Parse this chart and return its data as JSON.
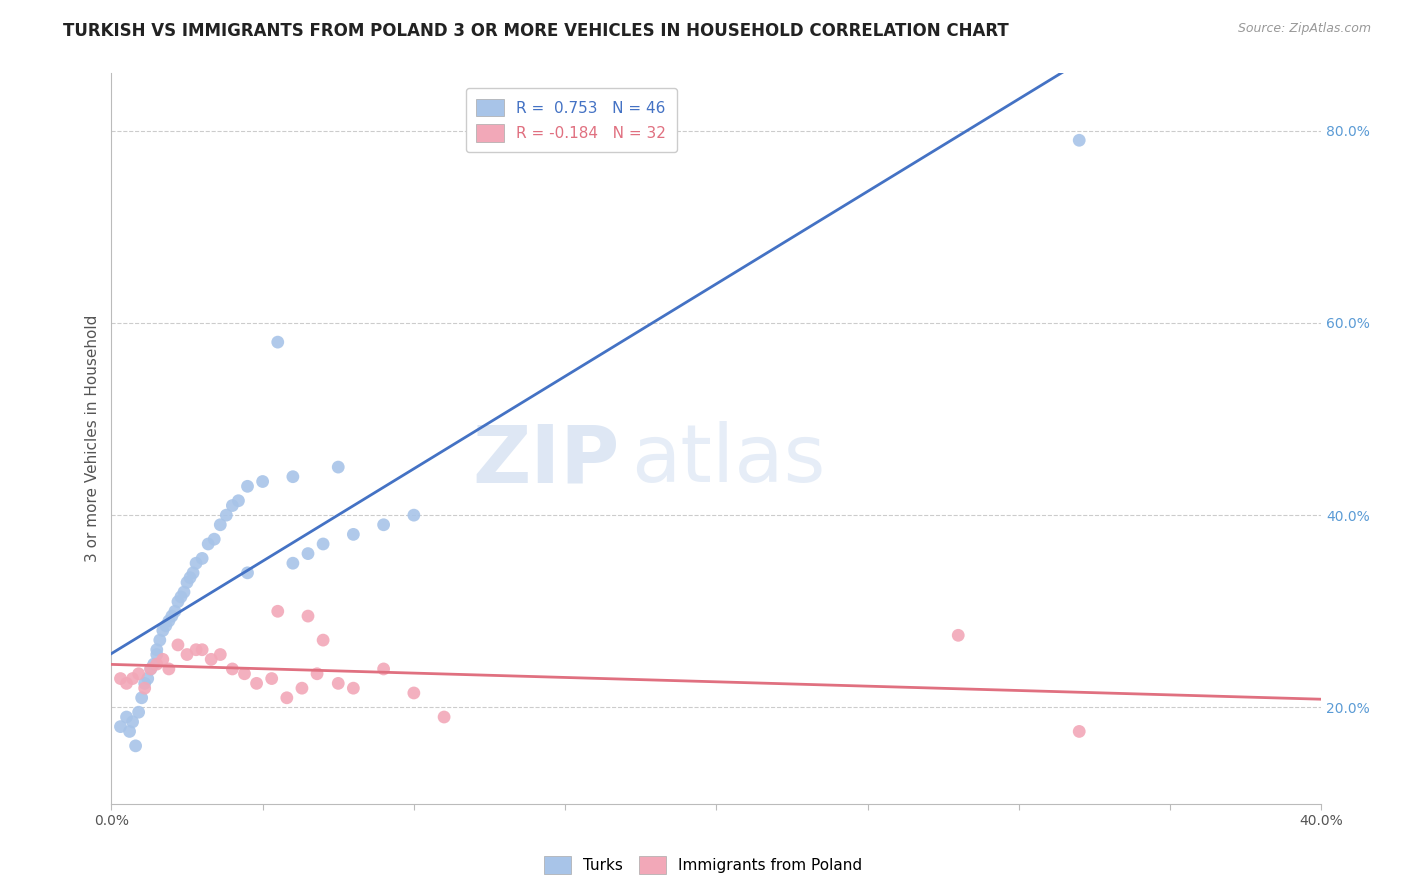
{
  "title": "TURKISH VS IMMIGRANTS FROM POLAND 3 OR MORE VEHICLES IN HOUSEHOLD CORRELATION CHART",
  "source": "Source: ZipAtlas.com",
  "ylabel": "3 or more Vehicles in Household",
  "xlim": [
    0.0,
    0.4
  ],
  "ylim": [
    0.1,
    0.86
  ],
  "x_ticks": [
    0.0,
    0.05,
    0.1,
    0.15,
    0.2,
    0.25,
    0.3,
    0.35,
    0.4
  ],
  "y_ticks_right": [
    0.2,
    0.4,
    0.6,
    0.8
  ],
  "y_tick_labels_right": [
    "20.0%",
    "40.0%",
    "60.0%",
    "80.0%"
  ],
  "legend_r1": "R =  0.753   N = 46",
  "legend_r2": "R = -0.184   N = 32",
  "turks_color": "#A8C4E8",
  "poland_color": "#F2A8B8",
  "trendline_turks_color": "#4472C4",
  "trendline_poland_color": "#E07080",
  "watermark_zip": "ZIP",
  "watermark_atlas": "atlas",
  "turks_scatter_x": [
    0.003,
    0.005,
    0.006,
    0.007,
    0.008,
    0.009,
    0.01,
    0.011,
    0.012,
    0.013,
    0.014,
    0.015,
    0.015,
    0.016,
    0.017,
    0.018,
    0.019,
    0.02,
    0.021,
    0.022,
    0.023,
    0.024,
    0.025,
    0.026,
    0.027,
    0.028,
    0.03,
    0.032,
    0.034,
    0.036,
    0.038,
    0.04,
    0.042,
    0.045,
    0.05,
    0.055,
    0.06,
    0.065,
    0.07,
    0.08,
    0.09,
    0.1,
    0.045,
    0.06,
    0.075,
    0.32
  ],
  "turks_scatter_y": [
    0.18,
    0.19,
    0.175,
    0.185,
    0.16,
    0.195,
    0.21,
    0.225,
    0.23,
    0.24,
    0.245,
    0.255,
    0.26,
    0.27,
    0.28,
    0.285,
    0.29,
    0.295,
    0.3,
    0.31,
    0.315,
    0.32,
    0.33,
    0.335,
    0.34,
    0.35,
    0.355,
    0.37,
    0.375,
    0.39,
    0.4,
    0.41,
    0.415,
    0.43,
    0.435,
    0.58,
    0.35,
    0.36,
    0.37,
    0.38,
    0.39,
    0.4,
    0.34,
    0.44,
    0.45,
    0.79
  ],
  "poland_scatter_x": [
    0.003,
    0.005,
    0.007,
    0.009,
    0.011,
    0.013,
    0.015,
    0.017,
    0.019,
    0.022,
    0.025,
    0.028,
    0.03,
    0.033,
    0.036,
    0.04,
    0.044,
    0.048,
    0.053,
    0.058,
    0.063,
    0.068,
    0.075,
    0.08,
    0.09,
    0.1,
    0.11,
    0.055,
    0.065,
    0.07,
    0.28,
    0.32
  ],
  "poland_scatter_y": [
    0.23,
    0.225,
    0.23,
    0.235,
    0.22,
    0.24,
    0.245,
    0.25,
    0.24,
    0.265,
    0.255,
    0.26,
    0.26,
    0.25,
    0.255,
    0.24,
    0.235,
    0.225,
    0.23,
    0.21,
    0.22,
    0.235,
    0.225,
    0.22,
    0.24,
    0.215,
    0.19,
    0.3,
    0.295,
    0.27,
    0.275,
    0.175
  ],
  "grid_color": "#CCCCCC",
  "background_color": "#FFFFFF",
  "title_fontsize": 12,
  "axis_label_fontsize": 11,
  "tick_fontsize": 10,
  "legend_fontsize": 11
}
